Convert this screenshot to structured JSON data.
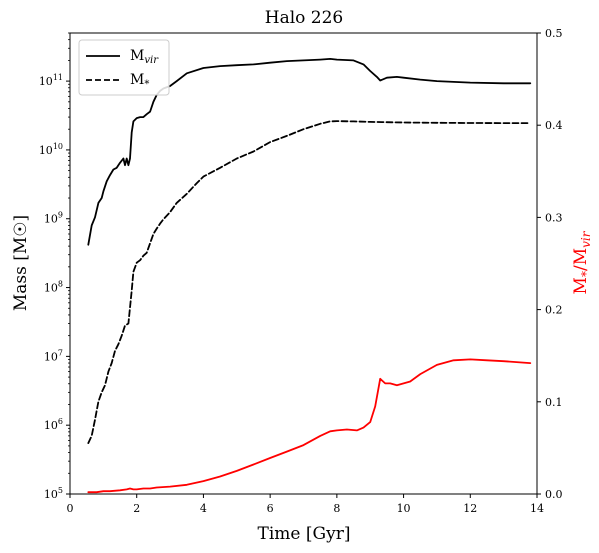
{
  "chart_data": {
    "type": "line",
    "title": "Halo 226",
    "xlabel": "Time [Gyr]",
    "xlim": [
      0,
      14
    ],
    "x_ticks": [
      0,
      2,
      4,
      6,
      8,
      10,
      12,
      14
    ],
    "x_tick_labels": [
      "0",
      "2",
      "4",
      "6",
      "8",
      "10",
      "12",
      "14"
    ],
    "left_axis": {
      "label": "Mass [M☉]",
      "scale": "log",
      "ylim": [
        100000,
        500000000000
      ],
      "ticks": [
        100000,
        1000000,
        10000000,
        100000000,
        1000000000,
        10000000000,
        100000000000
      ],
      "tick_labels": [
        {
          "base": "10",
          "exp": "5"
        },
        {
          "base": "10",
          "exp": "6"
        },
        {
          "base": "10",
          "exp": "7"
        },
        {
          "base": "10",
          "exp": "8"
        },
        {
          "base": "10",
          "exp": "9"
        },
        {
          "base": "10",
          "exp": "10"
        },
        {
          "base": "10",
          "exp": "11"
        }
      ]
    },
    "right_axis": {
      "label_main": "M",
      "label_sub1": "*",
      "label_mid": "/M",
      "label_sub2": "vir",
      "color": "#ff0000",
      "scale": "linear",
      "ylim": [
        0,
        0.5
      ],
      "ticks": [
        0,
        0.1,
        0.2,
        0.3,
        0.4,
        0.5
      ],
      "tick_labels": [
        "0.0",
        "0.1",
        "0.2",
        "0.3",
        "0.4",
        "0.5"
      ]
    },
    "legend": {
      "placement": "top-left",
      "entries": [
        {
          "main": "M",
          "sub": "vir",
          "style": "solid"
        },
        {
          "main": "M",
          "sub": "*",
          "style": "dashed"
        }
      ]
    },
    "grid": false,
    "series": [
      {
        "name": "M_vir",
        "axis": "left",
        "color": "#000000",
        "style": "solid",
        "x": [
          0.55,
          0.65,
          0.75,
          0.85,
          0.95,
          1.0,
          1.1,
          1.2,
          1.3,
          1.4,
          1.5,
          1.6,
          1.65,
          1.7,
          1.75,
          1.8,
          1.85,
          1.9,
          2.0,
          2.1,
          2.2,
          2.3,
          2.4,
          2.5,
          2.6,
          2.7,
          2.8,
          3.0,
          3.2,
          3.5,
          4.0,
          4.5,
          5.0,
          5.5,
          6.0,
          6.5,
          7.0,
          7.5,
          7.8,
          8.0,
          8.5,
          8.8,
          9.0,
          9.2,
          9.3,
          9.5,
          9.8,
          10.0,
          10.5,
          11.0,
          12.0,
          13.0,
          13.8
        ],
        "y": [
          420000000.0,
          800000000.0,
          1050000000.0,
          1700000000.0,
          2000000000.0,
          2500000000.0,
          3500000000.0,
          4300000000.0,
          5200000000.0,
          5500000000.0,
          6500000000.0,
          7500000000.0,
          6000000000.0,
          7500000000.0,
          6000000000.0,
          7500000000.0,
          18000000000.0,
          26000000000.0,
          29000000000.0,
          30000000000.0,
          30000000000.0,
          33000000000.0,
          36000000000.0,
          50000000000.0,
          63000000000.0,
          72000000000.0,
          78000000000.0,
          85000000000.0,
          100000000000.0,
          130000000000.0,
          155000000000.0,
          165000000000.0,
          170000000000.0,
          175000000000.0,
          185000000000.0,
          195000000000.0,
          200000000000.0,
          205000000000.0,
          210000000000.0,
          205000000000.0,
          200000000000.0,
          175000000000.0,
          140000000000.0,
          115000000000.0,
          102000000000.0,
          112000000000.0,
          115000000000.0,
          112000000000.0,
          105000000000.0,
          100000000000.0,
          95000000000.0,
          93000000000.0,
          93000000000.0
        ]
      },
      {
        "name": "M_*",
        "axis": "left",
        "color": "#000000",
        "style": "dashed",
        "x": [
          0.55,
          0.65,
          0.75,
          0.85,
          0.95,
          1.05,
          1.15,
          1.25,
          1.35,
          1.45,
          1.55,
          1.65,
          1.75,
          1.85,
          1.9,
          2.0,
          2.1,
          2.2,
          2.3,
          2.5,
          2.6,
          2.7,
          2.8,
          3.0,
          3.2,
          3.5,
          3.8,
          4.0,
          4.5,
          5.0,
          5.5,
          6.0,
          6.5,
          7.0,
          7.5,
          7.8,
          8.0,
          8.5,
          9.0,
          10.0,
          11.0,
          12.0,
          13.0,
          13.8
        ],
        "y": [
          550000.0,
          700000.0,
          1200000.0,
          2200000.0,
          3000000.0,
          3800000.0,
          6000000.0,
          8000000.0,
          12000000.0,
          15000000.0,
          20000000.0,
          28000000.0,
          30000000.0,
          90000000.0,
          170000000.0,
          230000000.0,
          250000000.0,
          290000000.0,
          320000000.0,
          600000000.0,
          720000000.0,
          850000000.0,
          980000000.0,
          1250000000.0,
          1700000000.0,
          2300000000.0,
          3300000000.0,
          4100000000.0,
          5500000000.0,
          7500000000.0,
          9500000000.0,
          13000000000.0,
          16000000000.0,
          20000000000.0,
          24000000000.0,
          26000000000.0,
          26200000000.0,
          26000000000.0,
          25500000000.0,
          25000000000.0,
          24800000000.0,
          24600000000.0,
          24500000000.0,
          24500000000.0
        ]
      },
      {
        "name": "M_*/M_vir",
        "axis": "right",
        "color": "#ff0000",
        "style": "solid",
        "x": [
          0.55,
          0.8,
          1.0,
          1.2,
          1.5,
          1.7,
          1.8,
          1.9,
          2.0,
          2.2,
          2.4,
          2.6,
          3.0,
          3.5,
          4.0,
          4.5,
          5.0,
          5.5,
          6.0,
          6.5,
          7.0,
          7.5,
          7.8,
          8.0,
          8.3,
          8.6,
          8.8,
          9.0,
          9.15,
          9.3,
          9.45,
          9.6,
          9.8,
          10.0,
          10.2,
          10.5,
          11.0,
          11.5,
          12.0,
          12.5,
          13.0,
          13.8
        ],
        "y": [
          0.002,
          0.002,
          0.003,
          0.003,
          0.004,
          0.005,
          0.006,
          0.005,
          0.005,
          0.006,
          0.006,
          0.007,
          0.008,
          0.01,
          0.014,
          0.019,
          0.025,
          0.032,
          0.039,
          0.046,
          0.053,
          0.063,
          0.068,
          0.069,
          0.07,
          0.069,
          0.072,
          0.078,
          0.095,
          0.125,
          0.12,
          0.12,
          0.118,
          0.12,
          0.122,
          0.13,
          0.14,
          0.145,
          0.146,
          0.145,
          0.144,
          0.142
        ]
      }
    ]
  }
}
